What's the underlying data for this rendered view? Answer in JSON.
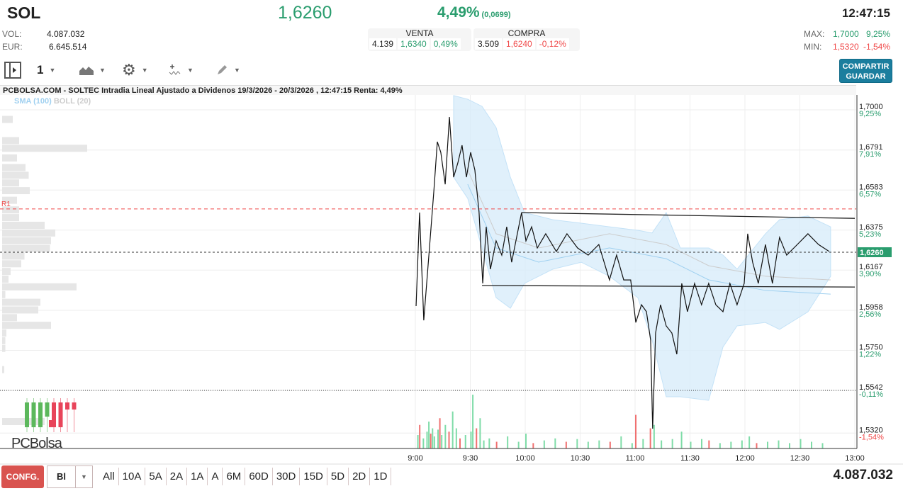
{
  "header": {
    "symbol": "SOL",
    "last": "1,6260",
    "pct": "4,49%",
    "change": "(0,0699)",
    "time": "12:47:15",
    "vol_label": "VOL:",
    "vol": "4.087.032",
    "eur_label": "EUR:",
    "eur": "6.645.514",
    "venta": {
      "label": "VENTA",
      "qty": "4.139",
      "price": "1,6340",
      "pct": "0,49%"
    },
    "compra": {
      "label": "COMPRA",
      "qty": "3.509",
      "price": "1,6240",
      "pct": "-0,12%"
    },
    "max_label": "MAX:",
    "max": "1,7000",
    "max_pct": "9,25%",
    "min_label": "MIN:",
    "min": "1,5320",
    "min_pct": "-1,54%"
  },
  "toolbar": {
    "interval": "1",
    "share_line1": "COMPARTIR",
    "share_line2": "GUARDAR"
  },
  "chart_title": "PCBOLSA.COM - SOLTEC Intradia Lineal Ajustado a Dividenos 19/3/2026 - 20/3/2026 , 12:47:15 Renta: 4,49%",
  "legend": {
    "sma": "SMA (100)",
    "boll": "BOLL (20)"
  },
  "logo": "PCBolsa",
  "colors": {
    "up": "#2a9d6e",
    "down": "#f04848",
    "band": "#d6ebfa",
    "sma": "#9fd0f0"
  },
  "chart_data": {
    "type": "line",
    "title": "PCBOLSA.COM - SOLTEC Intradia Lineal Ajustado a Dividenos",
    "ylim": [
      1.532,
      1.7
    ],
    "y_ticks": [
      {
        "v": 1.7,
        "label": "1,7000",
        "pct": "9,25%"
      },
      {
        "v": 1.6791,
        "label": "1,6791",
        "pct": "7,91%"
      },
      {
        "v": 1.6583,
        "label": "1,6583",
        "pct": "6,57%"
      },
      {
        "v": 1.6375,
        "label": "1,6375",
        "pct": "5,23%"
      },
      {
        "v": 1.6167,
        "label": "1,6167",
        "pct": "3,90%"
      },
      {
        "v": 1.5958,
        "label": "1,5958",
        "pct": "2,56%"
      },
      {
        "v": 1.575,
        "label": "1,5750",
        "pct": "1,22%"
      },
      {
        "v": 1.5542,
        "label": "1,5542",
        "pct": "-0,11%"
      },
      {
        "v": 1.532,
        "label": "1,5320",
        "pct": "-1,54%"
      }
    ],
    "x_ticks": [
      {
        "t": 0,
        "label": "9:00"
      },
      {
        "t": 30,
        "label": "9:30"
      },
      {
        "t": 60,
        "label": "10:00"
      },
      {
        "t": 90,
        "label": "10:30"
      },
      {
        "t": 120,
        "label": "11:00"
      },
      {
        "t": 150,
        "label": "11:30"
      },
      {
        "t": 180,
        "label": "12:00"
      },
      {
        "t": 210,
        "label": "12:30"
      },
      {
        "t": 240,
        "label": "13:00"
      }
    ],
    "x_unit": "minutes after 9:00",
    "last": {
      "v": 1.626,
      "label": "1,6260"
    },
    "prev_close": 1.5542,
    "r1": {
      "v": 1.6485,
      "label": "R1"
    },
    "price": [
      [
        0.4,
        1.598
      ],
      [
        2.3,
        1.6466
      ],
      [
        4.6,
        1.5906
      ],
      [
        7.7,
        1.6282
      ],
      [
        10.1,
        1.6577
      ],
      [
        12,
        1.6834
      ],
      [
        13.9,
        1.6779
      ],
      [
        16.3,
        1.6613
      ],
      [
        18.6,
        1.6963
      ],
      [
        20.9,
        1.665
      ],
      [
        23.2,
        1.6724
      ],
      [
        25.5,
        1.6816
      ],
      [
        27.9,
        1.665
      ],
      [
        30.2,
        1.6779
      ],
      [
        32.5,
        1.6687
      ],
      [
        34.8,
        1.6466
      ],
      [
        36.8,
        1.6098
      ],
      [
        38.7,
        1.6392
      ],
      [
        41,
        1.6172
      ],
      [
        44.1,
        1.6319
      ],
      [
        47.2,
        1.6245
      ],
      [
        49.9,
        1.6392
      ],
      [
        52.6,
        1.6208
      ],
      [
        55.7,
        1.6356
      ],
      [
        58,
        1.6466
      ],
      [
        60.4,
        1.6319
      ],
      [
        63.5,
        1.6392
      ],
      [
        66.6,
        1.6282
      ],
      [
        71.2,
        1.6356
      ],
      [
        77,
        1.6264
      ],
      [
        82.8,
        1.6356
      ],
      [
        88.6,
        1.6282
      ],
      [
        94.4,
        1.6245
      ],
      [
        100.2,
        1.63
      ],
      [
        106,
        1.6116
      ],
      [
        109.9,
        1.6245
      ],
      [
        113.8,
        1.6116
      ],
      [
        117.6,
        1.6116
      ],
      [
        120.4,
        1.5895
      ],
      [
        123.5,
        1.5987
      ],
      [
        126.2,
        1.5951
      ],
      [
        128.5,
        1.5803
      ],
      [
        129.6,
        1.5343
      ],
      [
        131.2,
        1.584
      ],
      [
        133.9,
        1.5987
      ],
      [
        137,
        1.5877
      ],
      [
        140.1,
        1.584
      ],
      [
        142.8,
        1.573
      ],
      [
        145.5,
        1.6098
      ],
      [
        148.6,
        1.5951
      ],
      [
        152.5,
        1.6098
      ],
      [
        156.3,
        1.5987
      ],
      [
        160.2,
        1.6098
      ],
      [
        164.1,
        1.5987
      ],
      [
        168,
        1.5951
      ],
      [
        171.8,
        1.6098
      ],
      [
        175.7,
        1.5987
      ],
      [
        179.6,
        1.6098
      ],
      [
        181.5,
        1.6356
      ],
      [
        184.2,
        1.6208
      ],
      [
        187.3,
        1.6098
      ],
      [
        191.2,
        1.63
      ],
      [
        195,
        1.6098
      ],
      [
        198.9,
        1.6337
      ],
      [
        202.8,
        1.6245
      ],
      [
        208.6,
        1.63
      ],
      [
        214.4,
        1.6356
      ],
      [
        220.2,
        1.63
      ],
      [
        226,
        1.6264
      ]
    ],
    "bollinger": [
      [
        20.9,
        1.7074,
        1.665
      ],
      [
        28.6,
        1.7055,
        1.654
      ],
      [
        36.4,
        1.7018,
        1.6282
      ],
      [
        44.1,
        1.6908,
        1.6024
      ],
      [
        51.9,
        1.665,
        1.5969
      ],
      [
        59.6,
        1.6466,
        1.6098
      ],
      [
        75.1,
        1.6429,
        1.6172
      ],
      [
        90.6,
        1.6411,
        1.6208
      ],
      [
        106,
        1.6392,
        1.6135
      ],
      [
        121.5,
        1.6374,
        1.6024
      ],
      [
        129.3,
        1.636,
        1.5803
      ],
      [
        137,
        1.6466,
        1.5509
      ],
      [
        144.7,
        1.6282,
        1.5509
      ],
      [
        160.2,
        1.6282,
        1.549
      ],
      [
        168,
        1.6245,
        1.5767
      ],
      [
        175.7,
        1.6172,
        1.5877
      ],
      [
        191.2,
        1.6356,
        1.5895
      ],
      [
        198.9,
        1.6429,
        1.5859
      ],
      [
        214.4,
        1.6448,
        1.595
      ],
      [
        226.8,
        1.6392,
        1.6135
      ]
    ],
    "sma": [
      [
        28.6,
        1.6687
      ],
      [
        44.1,
        1.6356
      ],
      [
        67.3,
        1.6282
      ],
      [
        106,
        1.6356
      ],
      [
        137,
        1.63
      ],
      [
        160.2,
        1.619
      ],
      [
        191.2,
        1.6135
      ],
      [
        226.8,
        1.6116
      ]
    ],
    "trendlines": [
      [
        [
          58,
          1.6466
        ],
        [
          240,
          1.6436
        ]
      ],
      [
        [
          36.4,
          1.6087
        ],
        [
          240,
          1.6079
        ]
      ]
    ],
    "volume": [
      [
        1,
        20,
        1
      ],
      [
        2,
        35,
        0
      ],
      [
        4,
        15,
        1
      ],
      [
        6,
        25,
        1
      ],
      [
        7,
        40,
        1
      ],
      [
        8,
        22,
        0
      ],
      [
        9,
        30,
        1
      ],
      [
        10,
        18,
        1
      ],
      [
        12,
        28,
        1
      ],
      [
        13,
        45,
        0
      ],
      [
        14,
        20,
        1
      ],
      [
        16,
        35,
        1
      ],
      [
        18,
        25,
        0
      ],
      [
        20,
        55,
        1
      ],
      [
        22,
        30,
        1
      ],
      [
        24,
        15,
        0
      ],
      [
        27,
        20,
        1
      ],
      [
        30,
        25,
        1
      ],
      [
        31,
        80,
        1
      ],
      [
        33,
        30,
        0
      ],
      [
        35,
        45,
        1
      ],
      [
        37,
        12,
        1
      ],
      [
        40,
        15,
        1
      ],
      [
        44,
        10,
        0
      ],
      [
        50,
        18,
        1
      ],
      [
        56,
        10,
        1
      ],
      [
        60,
        22,
        1
      ],
      [
        64,
        8,
        0
      ],
      [
        70,
        12,
        1
      ],
      [
        76,
        15,
        1
      ],
      [
        82,
        10,
        0
      ],
      [
        88,
        14,
        1
      ],
      [
        94,
        10,
        1
      ],
      [
        100,
        12,
        1
      ],
      [
        106,
        10,
        0
      ],
      [
        112,
        18,
        1
      ],
      [
        118,
        8,
        1
      ],
      [
        120,
        50,
        0
      ],
      [
        124,
        14,
        1
      ],
      [
        128,
        30,
        0
      ],
      [
        130,
        35,
        1
      ],
      [
        134,
        12,
        1
      ],
      [
        140,
        14,
        1
      ],
      [
        145,
        25,
        1
      ],
      [
        150,
        10,
        1
      ],
      [
        156,
        14,
        1
      ],
      [
        160,
        12,
        0
      ],
      [
        166,
        8,
        1
      ],
      [
        172,
        10,
        1
      ],
      [
        178,
        12,
        1
      ],
      [
        182,
        18,
        1
      ],
      [
        186,
        8,
        0
      ],
      [
        192,
        10,
        1
      ],
      [
        198,
        12,
        1
      ],
      [
        204,
        8,
        1
      ],
      [
        210,
        14,
        1
      ],
      [
        216,
        10,
        1
      ],
      [
        222,
        8,
        1
      ]
    ],
    "volume_profile": [
      [
        1.695,
        10
      ],
      [
        1.684,
        16
      ],
      [
        1.68,
        80
      ],
      [
        1.675,
        14
      ],
      [
        1.67,
        22
      ],
      [
        1.666,
        25
      ],
      [
        1.662,
        16
      ],
      [
        1.658,
        26
      ],
      [
        1.653,
        14
      ],
      [
        1.648,
        16
      ],
      [
        1.644,
        16
      ],
      [
        1.64,
        40
      ],
      [
        1.636,
        50
      ],
      [
        1.632,
        46
      ],
      [
        1.628,
        45
      ],
      [
        1.624,
        21
      ],
      [
        1.62,
        18
      ],
      [
        1.616,
        8
      ],
      [
        1.612,
        6
      ],
      [
        1.608,
        70
      ],
      [
        1.604,
        3
      ],
      [
        1.6,
        36
      ],
      [
        1.596,
        34
      ],
      [
        1.592,
        14
      ],
      [
        1.588,
        46
      ],
      [
        1.584,
        4
      ],
      [
        1.58,
        3
      ],
      [
        1.576,
        3
      ],
      [
        1.565,
        2
      ],
      [
        1.538,
        40
      ]
    ],
    "total_volume": "4.087.032"
  },
  "bottom": {
    "confg": "CONFG.",
    "type": "Bl",
    "periods": [
      "All",
      "10A",
      "5A",
      "2A",
      "1A",
      "A",
      "6M",
      "60D",
      "30D",
      "15D",
      "5D",
      "2D",
      "1D"
    ],
    "total": "4.087.032"
  }
}
